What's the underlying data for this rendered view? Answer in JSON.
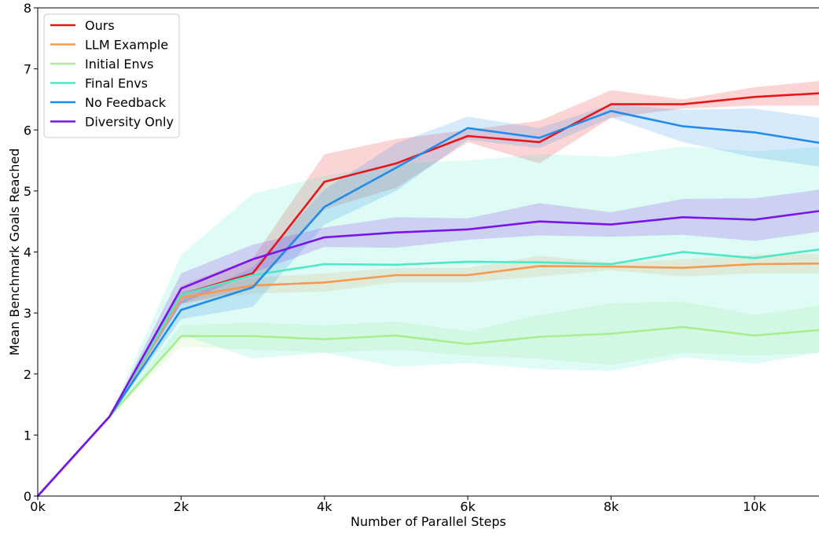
{
  "chart_data": {
    "type": "line",
    "title": "",
    "xlabel": "Number of Parallel Steps",
    "ylabel": "Mean Benchmark Goals Reached",
    "xlim": [
      0,
      10900
    ],
    "ylim": [
      0,
      8
    ],
    "x": [
      0,
      1000,
      2000,
      3000,
      4000,
      5000,
      6000,
      7000,
      8000,
      9000,
      10000,
      10900
    ],
    "x_ticks": [
      0,
      2000,
      4000,
      6000,
      8000,
      10000
    ],
    "x_tick_labels": [
      "0k",
      "2k",
      "4k",
      "6k",
      "8k",
      "10k"
    ],
    "y_ticks": [
      0,
      1,
      2,
      3,
      4,
      5,
      6,
      7,
      8
    ],
    "y_tick_labels": [
      "0",
      "1",
      "2",
      "3",
      "4",
      "5",
      "6",
      "7",
      "8"
    ],
    "grid": false,
    "legend_position": "top-left",
    "series": [
      {
        "name": "Ours",
        "color": "#e8161b",
        "values": [
          0,
          1.3,
          3.3,
          3.65,
          5.15,
          5.45,
          5.9,
          5.8,
          6.42,
          6.42,
          6.54,
          6.6
        ],
        "lower": [
          0,
          1.3,
          3.15,
          3.4,
          4.7,
          5.05,
          5.8,
          5.45,
          6.2,
          6.35,
          6.4,
          6.4
        ],
        "upper": [
          0,
          1.3,
          3.45,
          3.9,
          5.6,
          5.85,
          6.0,
          6.15,
          6.65,
          6.5,
          6.7,
          6.8
        ]
      },
      {
        "name": "LLM Example",
        "color": "#f59a4e",
        "values": [
          0,
          1.3,
          3.25,
          3.45,
          3.5,
          3.62,
          3.62,
          3.77,
          3.76,
          3.74,
          3.8,
          3.81
        ],
        "lower": [
          0,
          1.3,
          3.15,
          3.32,
          3.35,
          3.5,
          3.5,
          3.6,
          3.7,
          3.6,
          3.65,
          3.65
        ],
        "upper": [
          0,
          1.3,
          3.35,
          3.58,
          3.65,
          3.74,
          3.74,
          3.94,
          3.82,
          3.88,
          3.95,
          3.97
        ]
      },
      {
        "name": "Initial Envs",
        "color": "#a6ee8e",
        "values": [
          0,
          1.3,
          2.62,
          2.62,
          2.57,
          2.63,
          2.49,
          2.61,
          2.66,
          2.77,
          2.63,
          2.72
        ],
        "lower": [
          0,
          1.3,
          2.45,
          2.4,
          2.35,
          2.4,
          2.3,
          2.25,
          2.15,
          2.35,
          2.3,
          2.35
        ],
        "upper": [
          0,
          1.3,
          2.8,
          2.84,
          2.8,
          2.86,
          2.7,
          2.97,
          3.16,
          3.19,
          2.97,
          3.12
        ]
      },
      {
        "name": "Final Envs",
        "color": "#4de8c8",
        "values": [
          0,
          1.3,
          3.3,
          3.62,
          3.8,
          3.79,
          3.84,
          3.83,
          3.8,
          4.0,
          3.9,
          4.04
        ],
        "lower": [
          0,
          1.3,
          2.65,
          2.25,
          2.35,
          2.12,
          2.18,
          2.08,
          2.05,
          2.27,
          2.17,
          2.35
        ],
        "upper": [
          0,
          1.3,
          3.95,
          4.95,
          5.25,
          5.45,
          5.5,
          5.6,
          5.56,
          5.73,
          5.65,
          5.72
        ]
      },
      {
        "name": "No Feedback",
        "color": "#1f8ceb",
        "values": [
          0,
          1.3,
          3.05,
          3.42,
          4.74,
          5.38,
          6.03,
          5.87,
          6.31,
          6.06,
          5.96,
          5.79
        ],
        "lower": [
          0,
          1.3,
          2.9,
          3.1,
          4.45,
          5.0,
          5.84,
          5.7,
          6.2,
          5.8,
          5.55,
          5.4
        ],
        "upper": [
          0,
          1.3,
          3.2,
          3.75,
          5.02,
          5.78,
          6.22,
          6.03,
          6.42,
          6.33,
          6.35,
          6.2
        ]
      },
      {
        "name": "Diversity Only",
        "color": "#7a14e8",
        "values": [
          0,
          1.3,
          3.4,
          3.88,
          4.24,
          4.32,
          4.37,
          4.5,
          4.45,
          4.57,
          4.53,
          4.67
        ],
        "lower": [
          0,
          1.3,
          3.15,
          3.66,
          4.08,
          4.07,
          4.2,
          4.27,
          4.25,
          4.28,
          4.18,
          4.33
        ],
        "upper": [
          0,
          1.3,
          3.65,
          4.12,
          4.4,
          4.57,
          4.55,
          4.8,
          4.65,
          4.87,
          4.88,
          5.02
        ]
      }
    ]
  }
}
